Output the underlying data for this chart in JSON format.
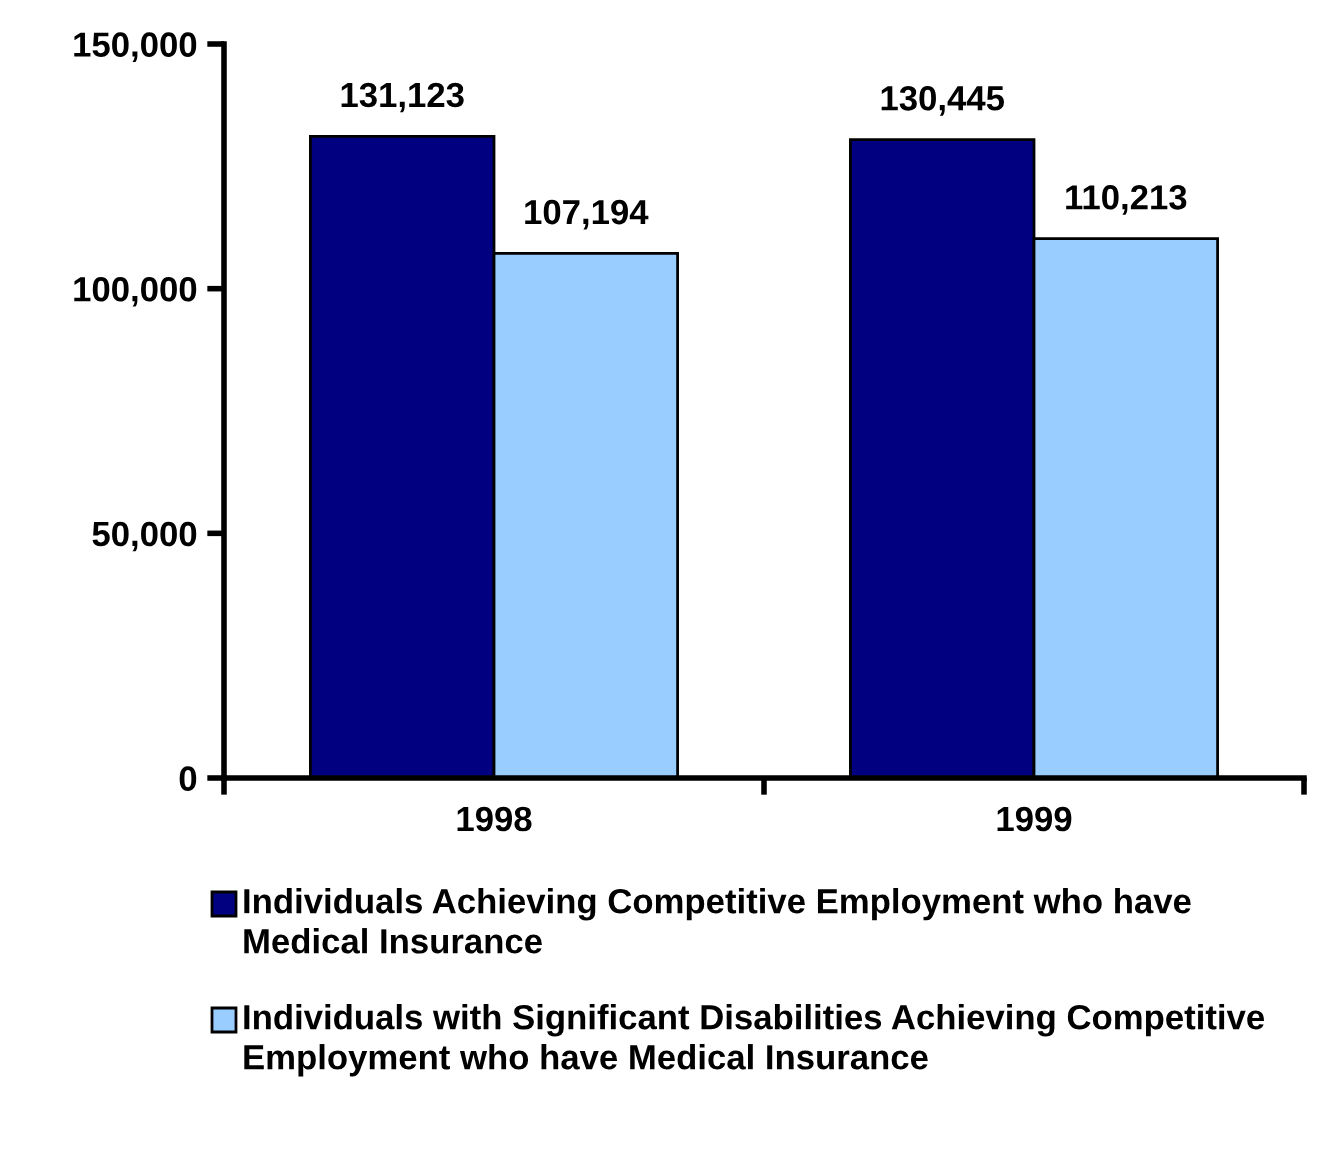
{
  "chart_data": {
    "type": "bar",
    "categories": [
      "1998",
      "1999"
    ],
    "series": [
      {
        "name": "Individuals Achieving Competitive Employment who have Medical Insurance",
        "color": "#000080",
        "values": [
          131123,
          130445
        ]
      },
      {
        "name": "Individuals with Significant Disabilities Achieving Competitive Employment who have Medical Insurance",
        "color": "#99ccff",
        "values": [
          107194,
          110213
        ]
      }
    ],
    "ylim": [
      0,
      150000
    ],
    "yticks": [
      {
        "value": 0,
        "label": "0"
      },
      {
        "value": 50000,
        "label": "50,000"
      },
      {
        "value": 100000,
        "label": "100,000"
      },
      {
        "value": 150000,
        "label": "150,000"
      }
    ],
    "value_labels": [
      [
        "131,123",
        "130,445"
      ],
      [
        "107,194",
        "110,213"
      ]
    ],
    "grid": false,
    "legend": "bottom"
  }
}
